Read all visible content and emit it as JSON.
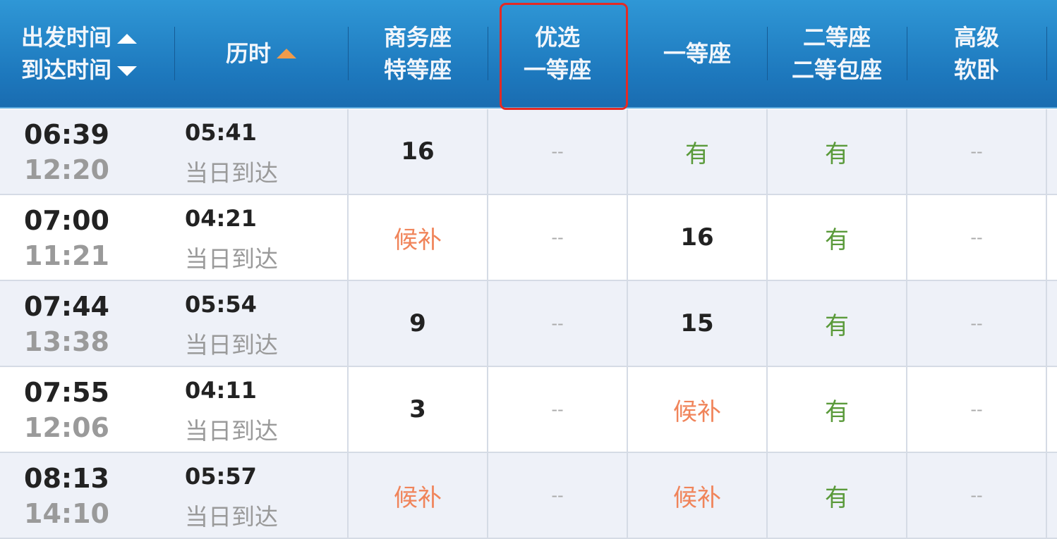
{
  "header": {
    "time": {
      "depart": "出发时间",
      "arrive": "到达时间"
    },
    "duration": "历时",
    "columns": [
      [
        "商务座",
        "特等座"
      ],
      [
        "优选",
        "一等座"
      ],
      [
        "一等座"
      ],
      [
        "二等座",
        "二等包座"
      ],
      [
        "高级",
        "软卧"
      ]
    ],
    "highlighted_column": "优选一等座",
    "colors": {
      "header": "#1d78bd",
      "highlight_border": "#e42a24",
      "available": "#5a9a3a",
      "waitlist": "#f0845a"
    }
  },
  "rows": [
    {
      "depart": "06:39",
      "arrive": "12:20",
      "duration": "05:41",
      "arrival_day": "当日到达",
      "seats": [
        "16",
        "--",
        "有",
        "有",
        "--"
      ]
    },
    {
      "depart": "07:00",
      "arrive": "11:21",
      "duration": "04:21",
      "arrival_day": "当日到达",
      "seats": [
        "候补",
        "--",
        "16",
        "有",
        "--"
      ]
    },
    {
      "depart": "07:44",
      "arrive": "13:38",
      "duration": "05:54",
      "arrival_day": "当日到达",
      "seats": [
        "9",
        "--",
        "15",
        "有",
        "--"
      ]
    },
    {
      "depart": "07:55",
      "arrive": "12:06",
      "duration": "04:11",
      "arrival_day": "当日到达",
      "seats": [
        "3",
        "--",
        "候补",
        "有",
        "--"
      ]
    },
    {
      "depart": "08:13",
      "arrive": "14:10",
      "duration": "05:57",
      "arrival_day": "当日到达",
      "seats": [
        "候补",
        "--",
        "候补",
        "有",
        "--"
      ]
    }
  ]
}
